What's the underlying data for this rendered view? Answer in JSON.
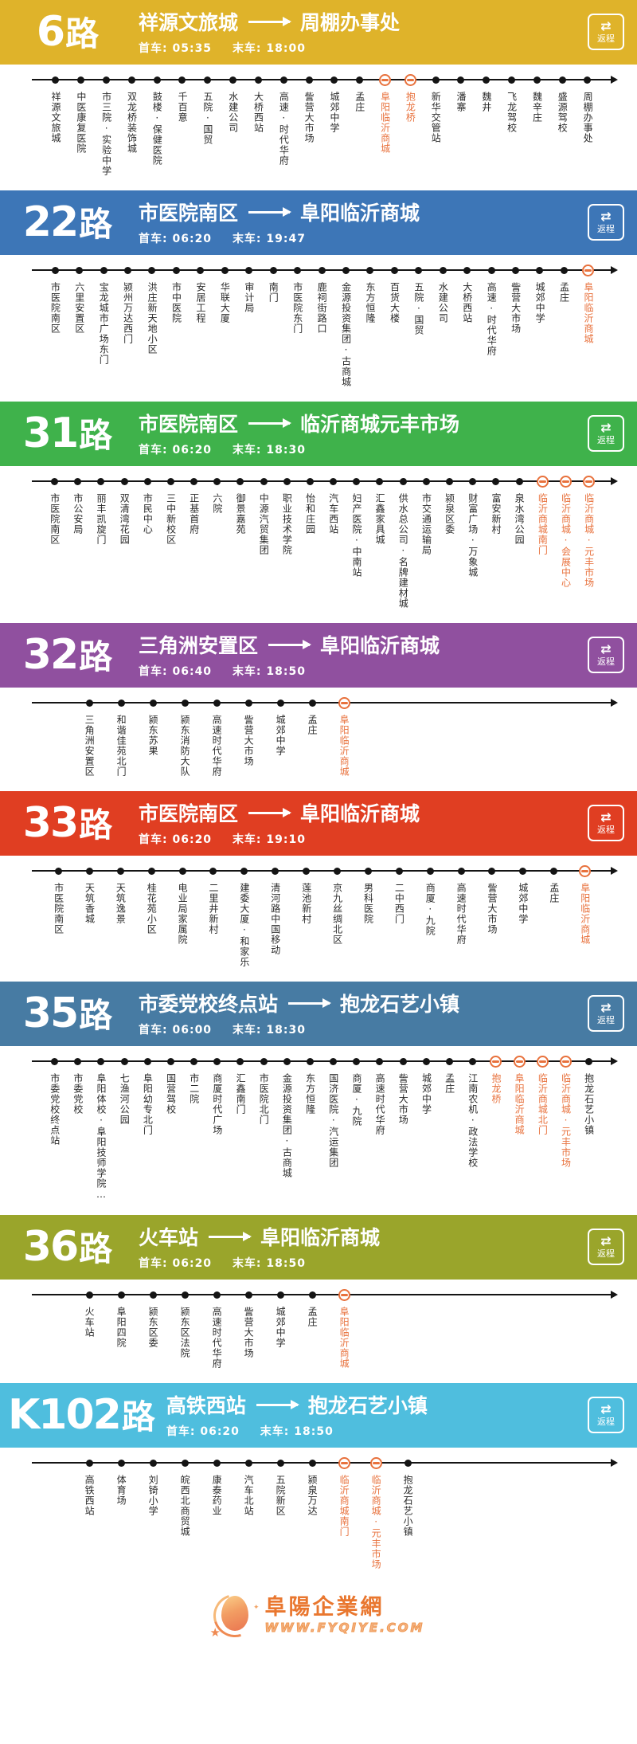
{
  "labels": {
    "first_bus_prefix": "首车:",
    "last_bus_prefix": "末车:",
    "return_label": "返程"
  },
  "icons": {
    "round_trip": "⇄",
    "star": "★",
    "sparkle": "✦"
  },
  "colors": {
    "highlight": "#e8713c",
    "line": "#141414"
  },
  "footer": {
    "site_name": "阜陽企業網",
    "site_url": "www.fyqiye.com"
  },
  "routes": [
    {
      "number": "6",
      "suffix": "路",
      "color": "#dfb32a",
      "origin": "祥源文旅城",
      "destination": "周棚办事处",
      "first_bus": "05:35",
      "last_bus": "18:00",
      "stops": [
        {
          "name": "祥源文旅城",
          "highlight": false
        },
        {
          "name": "中医康复医院",
          "highlight": false
        },
        {
          "name": "市三院·实验中学",
          "highlight": false
        },
        {
          "name": "双龙桥装饰城",
          "highlight": false
        },
        {
          "name": "鼓楼·保健医院",
          "highlight": false
        },
        {
          "name": "千百意",
          "highlight": false
        },
        {
          "name": "五院·国贸",
          "highlight": false
        },
        {
          "name": "水建公司",
          "highlight": false
        },
        {
          "name": "大桥西站",
          "highlight": false
        },
        {
          "name": "高速·时代华府",
          "highlight": false
        },
        {
          "name": "訾营大市场",
          "highlight": false
        },
        {
          "name": "城郊中学",
          "highlight": false
        },
        {
          "name": "孟庄",
          "highlight": false
        },
        {
          "name": "阜阳临沂商城",
          "highlight": true
        },
        {
          "name": "抱龙桥",
          "highlight": true
        },
        {
          "name": "新华交管站",
          "highlight": false
        },
        {
          "name": "潘寨",
          "highlight": false
        },
        {
          "name": "魏井",
          "highlight": false
        },
        {
          "name": "飞龙驾校",
          "highlight": false
        },
        {
          "name": "魏辛庄",
          "highlight": false
        },
        {
          "name": "盛源驾校",
          "highlight": false
        },
        {
          "name": "周棚办事处",
          "highlight": false
        }
      ]
    },
    {
      "number": "22",
      "suffix": "路",
      "color": "#3d76b7",
      "origin": "市医院南区",
      "destination": "阜阳临沂商城",
      "first_bus": "06:20",
      "last_bus": "19:47",
      "stops": [
        {
          "name": "市医院南区",
          "highlight": false
        },
        {
          "name": "六里安置区",
          "highlight": false
        },
        {
          "name": "宝龙城市广场东门",
          "highlight": false
        },
        {
          "name": "颍州万达西门",
          "highlight": false
        },
        {
          "name": "洪庄新天地小区",
          "highlight": false
        },
        {
          "name": "市中医院",
          "highlight": false
        },
        {
          "name": "安居工程",
          "highlight": false
        },
        {
          "name": "华联大厦",
          "highlight": false
        },
        {
          "name": "审计局",
          "highlight": false
        },
        {
          "name": "南门",
          "highlight": false
        },
        {
          "name": "市医院东门",
          "highlight": false
        },
        {
          "name": "鹿祠街路口",
          "highlight": false
        },
        {
          "name": "金源投资集团·古商城",
          "highlight": false
        },
        {
          "name": "东方恒隆",
          "highlight": false
        },
        {
          "name": "百货大楼",
          "highlight": false
        },
        {
          "name": "五院·国贸",
          "highlight": false
        },
        {
          "name": "水建公司",
          "highlight": false
        },
        {
          "name": "大桥西站",
          "highlight": false
        },
        {
          "name": "高速·时代华府",
          "highlight": false
        },
        {
          "name": "訾营大市场",
          "highlight": false
        },
        {
          "name": "城郊中学",
          "highlight": false
        },
        {
          "name": "孟庄",
          "highlight": false
        },
        {
          "name": "阜阳临沂商城",
          "highlight": true
        }
      ]
    },
    {
      "number": "31",
      "suffix": "路",
      "color": "#3fb24b",
      "origin": "市医院南区",
      "destination": "临沂商城元丰市场",
      "first_bus": "06:20",
      "last_bus": "18:30",
      "stops": [
        {
          "name": "市医院南区",
          "highlight": false
        },
        {
          "name": "市公安局",
          "highlight": false
        },
        {
          "name": "丽丰凯旋门",
          "highlight": false
        },
        {
          "name": "双清湾花园",
          "highlight": false
        },
        {
          "name": "市民中心",
          "highlight": false
        },
        {
          "name": "三中新校区",
          "highlight": false
        },
        {
          "name": "正基首府",
          "highlight": false
        },
        {
          "name": "六院",
          "highlight": false
        },
        {
          "name": "御景嘉苑",
          "highlight": false
        },
        {
          "name": "中源汽贸集团",
          "highlight": false
        },
        {
          "name": "职业技术学院",
          "highlight": false
        },
        {
          "name": "怡和庄园",
          "highlight": false
        },
        {
          "name": "汽车西站",
          "highlight": false
        },
        {
          "name": "妇产医院·中南站",
          "highlight": false
        },
        {
          "name": "汇鑫家具城",
          "highlight": false
        },
        {
          "name": "供水总公司·名牌建材城",
          "highlight": false
        },
        {
          "name": "市交通运输局",
          "highlight": false
        },
        {
          "name": "颍泉区委",
          "highlight": false
        },
        {
          "name": "财富广场·万象城",
          "highlight": false
        },
        {
          "name": "富安新村",
          "highlight": false
        },
        {
          "name": "泉水湾公园",
          "highlight": false
        },
        {
          "name": "临沂商城南门",
          "highlight": true
        },
        {
          "name": "临沂商城·会展中心",
          "highlight": true
        },
        {
          "name": "临沂商城·元丰市场",
          "highlight": true
        }
      ]
    },
    {
      "number": "32",
      "suffix": "路",
      "color": "#90509f",
      "origin": "三角洲安置区",
      "destination": "阜阳临沂商城",
      "first_bus": "06:40",
      "last_bus": "18:50",
      "stops": [
        {
          "name": "三角洲安置区",
          "highlight": false
        },
        {
          "name": "和谐佳苑北门",
          "highlight": false
        },
        {
          "name": "颍东苏果",
          "highlight": false
        },
        {
          "name": "颍东消防大队",
          "highlight": false
        },
        {
          "name": "高速时代华府",
          "highlight": false
        },
        {
          "name": "訾营大市场",
          "highlight": false
        },
        {
          "name": "城郊中学",
          "highlight": false
        },
        {
          "name": "孟庄",
          "highlight": false
        },
        {
          "name": "阜阳临沂商城",
          "highlight": true
        }
      ]
    },
    {
      "number": "33",
      "suffix": "路",
      "color": "#e03e22",
      "origin": "市医院南区",
      "destination": "阜阳临沂商城",
      "first_bus": "06:20",
      "last_bus": "19:10",
      "stops": [
        {
          "name": "市医院南区",
          "highlight": false
        },
        {
          "name": "天筑香城",
          "highlight": false
        },
        {
          "name": "天筑逸景",
          "highlight": false
        },
        {
          "name": "桂花苑小区",
          "highlight": false
        },
        {
          "name": "电业局家属院",
          "highlight": false
        },
        {
          "name": "二里井新村",
          "highlight": false
        },
        {
          "name": "建委大厦·和家乐",
          "highlight": false
        },
        {
          "name": "清河路中国移动",
          "highlight": false
        },
        {
          "name": "莲池新村",
          "highlight": false
        },
        {
          "name": "京九丝绸北区",
          "highlight": false
        },
        {
          "name": "男科医院",
          "highlight": false
        },
        {
          "name": "二中西门",
          "highlight": false
        },
        {
          "name": "商厦·九院",
          "highlight": false
        },
        {
          "name": "高速时代华府",
          "highlight": false
        },
        {
          "name": "訾营大市场",
          "highlight": false
        },
        {
          "name": "城郊中学",
          "highlight": false
        },
        {
          "name": "孟庄",
          "highlight": false
        },
        {
          "name": "阜阳临沂商城",
          "highlight": true
        }
      ]
    },
    {
      "number": "35",
      "suffix": "路",
      "color": "#477ba3",
      "origin": "市委党校终点站",
      "destination": "抱龙石艺小镇",
      "first_bus": "06:00",
      "last_bus": "18:30",
      "stops": [
        {
          "name": "市委党校终点站",
          "highlight": false
        },
        {
          "name": "市委党校",
          "highlight": false
        },
        {
          "name": "阜阳体校·阜阳技师学院…",
          "highlight": false
        },
        {
          "name": "七渔河公园",
          "highlight": false
        },
        {
          "name": "阜阳幼专北门",
          "highlight": false
        },
        {
          "name": "国营驾校",
          "highlight": false
        },
        {
          "name": "市二院",
          "highlight": false
        },
        {
          "name": "商厦时代广场",
          "highlight": false
        },
        {
          "name": "汇鑫南门",
          "highlight": false
        },
        {
          "name": "市医院北门",
          "highlight": false
        },
        {
          "name": "金源投资集团·古商城",
          "highlight": false
        },
        {
          "name": "东方恒隆",
          "highlight": false
        },
        {
          "name": "国济医院·汽运集团",
          "highlight": false
        },
        {
          "name": "商厦·九院",
          "highlight": false
        },
        {
          "name": "高速时代华府",
          "highlight": false
        },
        {
          "name": "訾营大市场",
          "highlight": false
        },
        {
          "name": "城郊中学",
          "highlight": false
        },
        {
          "name": "孟庄",
          "highlight": false
        },
        {
          "name": "江南农机·政法学校",
          "highlight": false
        },
        {
          "name": "抱龙桥",
          "highlight": true
        },
        {
          "name": "阜阳临沂商城",
          "highlight": true
        },
        {
          "name": "临沂商城北门",
          "highlight": true
        },
        {
          "name": "临沂商城·元丰市场",
          "highlight": true
        },
        {
          "name": "抱龙石艺小镇",
          "highlight": false
        }
      ]
    },
    {
      "number": "36",
      "suffix": "路",
      "color": "#9aa52b",
      "origin": "火车站",
      "destination": "阜阳临沂商城",
      "first_bus": "06:20",
      "last_bus": "18:50",
      "stops": [
        {
          "name": "火车站",
          "highlight": false
        },
        {
          "name": "阜阳四院",
          "highlight": false
        },
        {
          "name": "颍东区委",
          "highlight": false
        },
        {
          "name": "颍东区法院",
          "highlight": false
        },
        {
          "name": "高速时代华府",
          "highlight": false
        },
        {
          "name": "訾营大市场",
          "highlight": false
        },
        {
          "name": "城郊中学",
          "highlight": false
        },
        {
          "name": "孟庄",
          "highlight": false
        },
        {
          "name": "阜阳临沂商城",
          "highlight": true
        }
      ]
    },
    {
      "number": "K102",
      "suffix": "路",
      "color": "#4fbede",
      "origin": "高铁西站",
      "destination": "抱龙石艺小镇",
      "first_bus": "06:20",
      "last_bus": "18:50",
      "stops": [
        {
          "name": "高铁西站",
          "highlight": false
        },
        {
          "name": "体育场",
          "highlight": false
        },
        {
          "name": "刘锜小学",
          "highlight": false
        },
        {
          "name": "皖西北商贸城",
          "highlight": false
        },
        {
          "name": "康泰药业",
          "highlight": false
        },
        {
          "name": "汽车北站",
          "highlight": false
        },
        {
          "name": "五院新区",
          "highlight": false
        },
        {
          "name": "颍泉万达",
          "highlight": false
        },
        {
          "name": "临沂商城南门",
          "highlight": true
        },
        {
          "name": "临沂商城·元丰市场",
          "highlight": true
        },
        {
          "name": "抱龙石艺小镇",
          "highlight": false
        }
      ]
    }
  ]
}
